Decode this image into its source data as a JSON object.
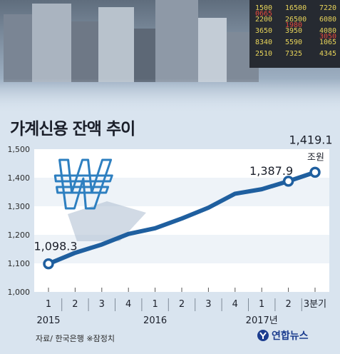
{
  "title": "가계신용 잔액 추이",
  "chart_data": {
    "type": "line",
    "categories": [
      "1",
      "2",
      "3",
      "4",
      "1",
      "2",
      "3",
      "4",
      "1",
      "2",
      "3분기"
    ],
    "year_labels": [
      {
        "label": "2015",
        "index": 0
      },
      {
        "label": "2016",
        "index": 4
      },
      {
        "label": "2017년",
        "index": 8
      }
    ],
    "values": [
      1098.3,
      1137,
      1166,
      1203,
      1223,
      1257,
      1295,
      1344,
      1359.7,
      1387.9,
      1419.1
    ],
    "point_labels": [
      {
        "index": 0,
        "text": "1,098.3"
      },
      {
        "index": 9,
        "text": "1,387.9"
      },
      {
        "index": 10,
        "text": "1,419.1"
      }
    ],
    "unit_label": "조원",
    "y_ticks": [
      "1,000",
      "1,100",
      "1,200",
      "1,300",
      "1,400",
      "1,500"
    ],
    "ylim": [
      1000,
      1500
    ],
    "marker_indices": [
      0,
      9,
      10
    ],
    "grid": true,
    "line_color": "#1f5f9f",
    "band_colors": [
      "#ffffff",
      "#eef3f8"
    ]
  },
  "source": "자료/ 한국은행  ※잠정치",
  "logo": "연합뉴스",
  "colors": {
    "background": "#d9e4ef",
    "line": "#1f5f9f",
    "won_sign": "#2d7fc0"
  }
}
